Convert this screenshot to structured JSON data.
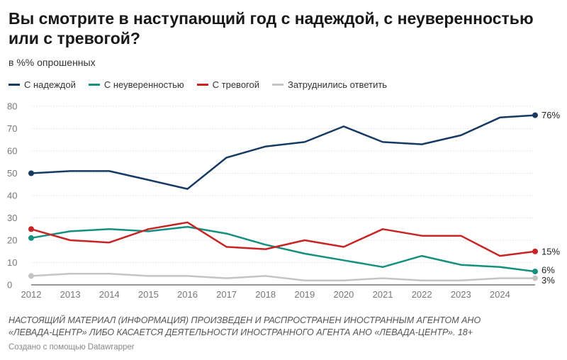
{
  "title": "Вы смотрите в наступающий год с надеждой, с неуверенностью или с тревогой?",
  "subtitle": "в %% опрошенных",
  "colors": {
    "hope": "#173a63",
    "uncertainty": "#13907f",
    "anxiety": "#c82424",
    "hard": "#c4c4c4"
  },
  "chart_data": {
    "type": "line",
    "ylim": [
      0,
      80
    ],
    "yticks": [
      "0",
      "10",
      "20",
      "30",
      "40",
      "50",
      "60",
      "70",
      "80"
    ],
    "xticks": [
      "2012",
      "2013",
      "2014",
      "2015",
      "2016",
      "2017",
      "2018",
      "2019",
      "2020",
      "2021",
      "2022",
      "2023",
      "2024"
    ],
    "x": [
      2012,
      2013,
      2014,
      2015,
      2016,
      2017,
      2018,
      2019,
      2020,
      2021,
      2022,
      2023,
      2024,
      2024.9
    ],
    "grid": true,
    "legend_position": "top",
    "series": [
      {
        "name": "С надеждой",
        "color": "#173a63",
        "end_label": "76%",
        "values": [
          50,
          51,
          51,
          47,
          43,
          57,
          62,
          64,
          71,
          64,
          63,
          67,
          75,
          76
        ]
      },
      {
        "name": "С неуверенностью",
        "color": "#13907f",
        "end_label": "6%",
        "values": [
          21,
          24,
          25,
          24,
          26,
          23,
          18,
          14,
          11,
          8,
          13,
          9,
          8,
          6
        ]
      },
      {
        "name": "С тревогой",
        "color": "#c82424",
        "end_label": "15%",
        "values": [
          25,
          20,
          19,
          25,
          28,
          17,
          16,
          20,
          17,
          25,
          22,
          22,
          13,
          15
        ]
      },
      {
        "name": "Затруднились ответить",
        "color": "#c4c4c4",
        "end_label": "3%",
        "values": [
          4,
          5,
          5,
          4,
          4,
          3,
          4,
          2,
          2,
          3,
          2,
          2,
          3,
          3
        ]
      }
    ]
  },
  "notes": {
    "line1": "НАСТОЯЩИЙ МАТЕРИАЛ (ИНФОРМАЦИЯ) ПРОИЗВЕДЕН И РАСПРОСТРАНЕН ИНОСТРАННЫМ АГЕНТОМ АНО",
    "line2": "«ЛЕВАДА-ЦЕНТР» ЛИБО КАСАЕТСЯ ДЕЯТЕЛЬНОСТИ ИНОСТРАННОГО АГЕНТА АНО «ЛЕВАДА-ЦЕНТР». 18+"
  },
  "credit": "Создано с помощью Datawrapper"
}
